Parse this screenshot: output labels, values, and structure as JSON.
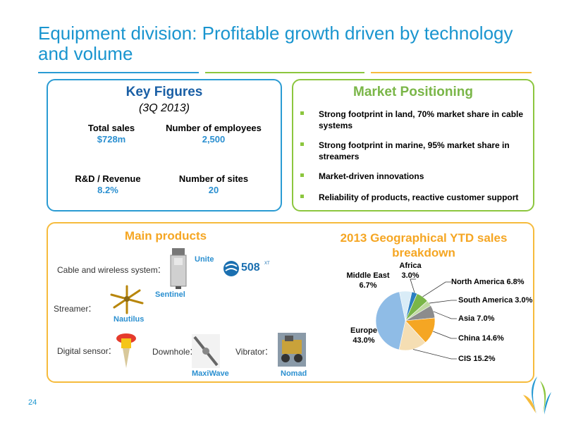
{
  "title": "Equipment division: Profitable growth driven by technology and volume",
  "key_figures": {
    "heading": "Key Figures",
    "period": "(3Q 2013)",
    "items": [
      {
        "label": "Total sales",
        "value": "$728m"
      },
      {
        "label": "Number of employees",
        "value": "2,500"
      },
      {
        "label": "R&D / Revenue",
        "value": "8.2%"
      },
      {
        "label": "Number of sites",
        "value": "20"
      }
    ]
  },
  "market": {
    "heading": "Market Positioning",
    "bullets": [
      "Strong footprint in land, 70% market share in cable systems",
      "Strong footprint in marine, 95% market share in streamers",
      "Market-driven innovations",
      "Reliability of products, reactive customer support"
    ]
  },
  "products": {
    "heading": "Main products",
    "categories": {
      "cable": "Cable and wireless system",
      "streamer": "Streamer",
      "digital": "Digital sensor",
      "downhole": "Downhole",
      "vibrator": "Vibrator"
    },
    "colon": ":",
    "names": {
      "unite": "Unite",
      "sentinel": "Sentinel",
      "nautilus": "Nautilus",
      "maxiwave": "MaxiWave",
      "nomad": "Nomad"
    },
    "logo_text": "508",
    "logo_sup": "XT"
  },
  "pie_heading": "2013 Geographical YTD sales breakdown",
  "chart_data": {
    "type": "pie",
    "title": "2013 Geographical YTD sales breakdown",
    "slices": [
      {
        "name": "Africa",
        "value": 3.0,
        "label": "Africa",
        "pct": "3.0%",
        "color": "#2a7fc1"
      },
      {
        "name": "North America",
        "value": 6.8,
        "label": "North America 6.8%",
        "color": "#7ab648"
      },
      {
        "name": "South America",
        "value": 3.0,
        "label": "South America 3.0%",
        "color": "#bfd9a0"
      },
      {
        "name": "Asia",
        "value": 7.0,
        "label": "Asia 7.0%",
        "color": "#8c8c8c"
      },
      {
        "name": "China",
        "value": 14.6,
        "label": "China 14.6%",
        "color": "#f5a623"
      },
      {
        "name": "CIS",
        "value": 15.2,
        "label": "CIS 15.2%",
        "color": "#f5deb3"
      },
      {
        "name": "Europe",
        "value": 43.0,
        "label": "Europe",
        "pct": "43.0%",
        "color": "#8fbce6"
      },
      {
        "name": "Middle East",
        "value": 6.7,
        "label": "Middle East",
        "pct": "6.7%",
        "color": "#d9ecf7"
      }
    ]
  },
  "page_number": "24",
  "colors": {
    "title": "#1a95cf",
    "blue": "#2a9bd3",
    "green": "#8cc63e",
    "orange": "#f6bb3c"
  }
}
